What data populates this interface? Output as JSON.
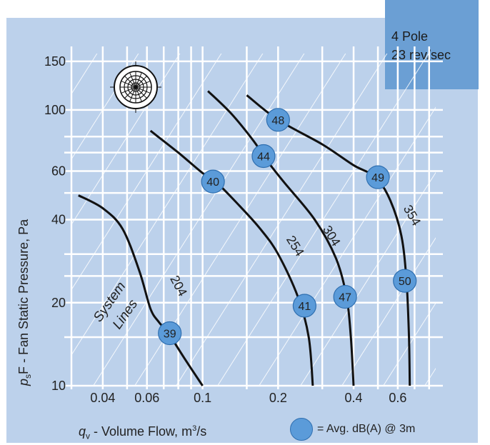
{
  "info_box": {
    "line1": "4 Pole",
    "line2": "23 rev/sec"
  },
  "legend": {
    "text": "= Avg. dB(A) @ 3m",
    "swatch_color": "#5b9bd9"
  },
  "x_axis_title": {
    "symbol": "q",
    "subscript": "v",
    "text": " - Volume Flow, m",
    "superscript": "3",
    "suffix": "/s"
  },
  "y_axis_title": {
    "symbol": "p",
    "subscript": "s",
    "text": "F - Fan Static Pressure, Pa"
  },
  "annotations": {
    "system_lines_1": "System",
    "system_lines_2": "Lines"
  },
  "chart_data": {
    "type": "line",
    "x_scale": "log",
    "y_scale": "log",
    "xlim": [
      0.03,
      0.85
    ],
    "ylim": [
      10,
      160
    ],
    "x_ticks": [
      0.04,
      0.06,
      0.1,
      0.2,
      0.4,
      0.6
    ],
    "x_tick_labels": [
      "0.04",
      "0.06",
      "0.1",
      "0.2",
      "0.4",
      "0.6"
    ],
    "y_ticks": [
      10,
      20,
      40,
      60,
      100,
      150
    ],
    "y_tick_labels": [
      "10",
      "20",
      "40",
      "60",
      "100",
      "150"
    ],
    "grid": true,
    "curve_color": "#111111",
    "marker_color": "#5b9bd9",
    "series": [
      {
        "name": "204",
        "points": [
          [
            0.032,
            49
          ],
          [
            0.04,
            44
          ],
          [
            0.048,
            37
          ],
          [
            0.056,
            26
          ],
          [
            0.062,
            19
          ],
          [
            0.067,
            17
          ],
          [
            0.073,
            15.5
          ],
          [
            0.085,
            12.5
          ],
          [
            0.1,
            10
          ]
        ],
        "markers": [
          {
            "x": 0.074,
            "y": 15.5,
            "label": "39"
          }
        ]
      },
      {
        "name": "254",
        "points": [
          [
            0.062,
            84
          ],
          [
            0.08,
            70
          ],
          [
            0.1,
            59
          ],
          [
            0.115,
            54
          ],
          [
            0.14,
            45
          ],
          [
            0.17,
            37
          ],
          [
            0.2,
            30
          ],
          [
            0.24,
            21
          ],
          [
            0.265,
            15
          ],
          [
            0.275,
            10
          ]
        ],
        "markers": [
          {
            "x": 0.11,
            "y": 55,
            "label": "40"
          },
          {
            "x": 0.255,
            "y": 19.5,
            "label": "41"
          }
        ]
      },
      {
        "name": "304",
        "points": [
          [
            0.105,
            117
          ],
          [
            0.13,
            97
          ],
          [
            0.16,
            77
          ],
          [
            0.175,
            68
          ],
          [
            0.21,
            55
          ],
          [
            0.28,
            40
          ],
          [
            0.34,
            29
          ],
          [
            0.375,
            21
          ],
          [
            0.39,
            15
          ],
          [
            0.4,
            10
          ]
        ],
        "markers": [
          {
            "x": 0.175,
            "y": 68,
            "label": "44"
          },
          {
            "x": 0.37,
            "y": 21,
            "label": "47"
          }
        ]
      },
      {
        "name": "354",
        "points": [
          [
            0.15,
            113
          ],
          [
            0.2,
            92
          ],
          [
            0.3,
            75
          ],
          [
            0.4,
            63
          ],
          [
            0.49,
            57
          ],
          [
            0.56,
            47
          ],
          [
            0.62,
            35
          ],
          [
            0.65,
            24
          ],
          [
            0.665,
            15
          ],
          [
            0.67,
            10
          ]
        ],
        "markers": [
          {
            "x": 0.2,
            "y": 92,
            "label": "48"
          },
          {
            "x": 0.5,
            "y": 57,
            "label": "49"
          },
          {
            "x": 0.64,
            "y": 24,
            "label": "50"
          }
        ]
      }
    ],
    "curve_labels": [
      "204",
      "254",
      "304",
      "354"
    ],
    "system_lines": true
  }
}
